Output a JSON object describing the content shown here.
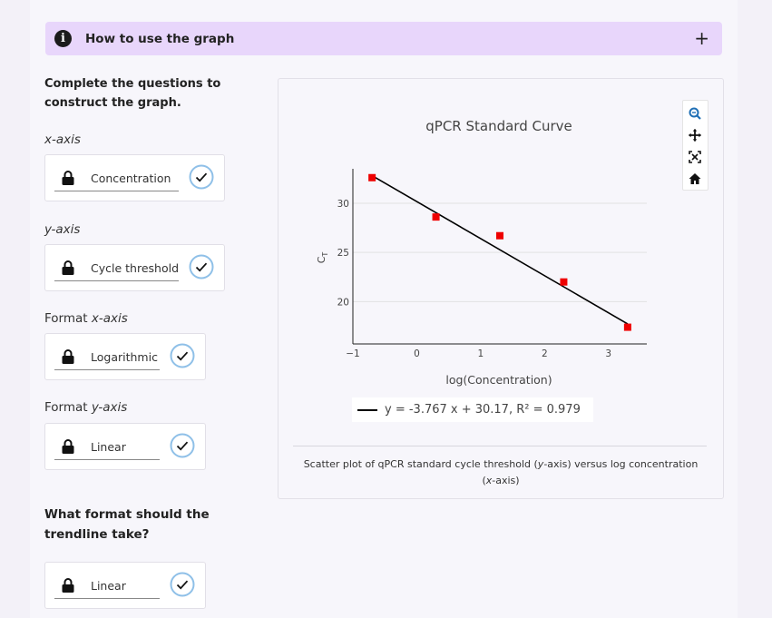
{
  "howto": {
    "title": "How to use the graph",
    "expand_symbol": "+"
  },
  "intro": "Complete the questions to construct the graph.",
  "questions": [
    {
      "label_pre": "",
      "label_em": "x-axis",
      "label_post": "",
      "answer": "Concentration"
    },
    {
      "label_pre": "",
      "label_em": "y-axis",
      "label_post": "",
      "answer": "Cycle threshold"
    },
    {
      "label_pre": "Format ",
      "label_em": "x-axis",
      "label_post": "",
      "answer": "Logarithmic"
    },
    {
      "label_pre": "Format ",
      "label_em": "y-axis",
      "label_post": "",
      "answer": "Linear"
    }
  ],
  "trendline_question": "What format should the trendline take?",
  "trendline_answer": "Linear",
  "chart_data": {
    "type": "scatter",
    "title": "qPCR Standard Curve",
    "xlabel": "log(Concentration)",
    "ylabel": "C",
    "ylabel_sub": "T",
    "xlim": [
      -1,
      3.6
    ],
    "ylim": [
      15.7,
      33.5
    ],
    "xticks": [
      -1,
      0,
      1,
      2,
      3
    ],
    "xtick_labels": [
      "−1",
      "0",
      "1",
      "2",
      "3"
    ],
    "yticks": [
      20,
      25,
      30
    ],
    "yaxis_grid": true,
    "marker_color": "#ee0000",
    "points": [
      {
        "x": -0.7,
        "y": 32.6
      },
      {
        "x": 0.3,
        "y": 28.6
      },
      {
        "x": 1.3,
        "y": 26.7
      },
      {
        "x": 2.3,
        "y": 22.0
      },
      {
        "x": 3.3,
        "y": 17.4
      }
    ],
    "trendline": {
      "slope": -3.767,
      "intercept": 30.17,
      "x_range": [
        -0.7,
        3.3
      ]
    },
    "legend": "y = -3.767 x + 30.17, R² = 0.979"
  },
  "caption_pre": "Scatter plot of qPCR standard cycle threshold (",
  "caption_em1": "y",
  "caption_mid": "-axis) versus log concentration (",
  "caption_em2": "x",
  "caption_post": "-axis)",
  "toolbar_icons": [
    "zoom-icon",
    "pan-icon",
    "autoscale-icon",
    "home-icon"
  ]
}
